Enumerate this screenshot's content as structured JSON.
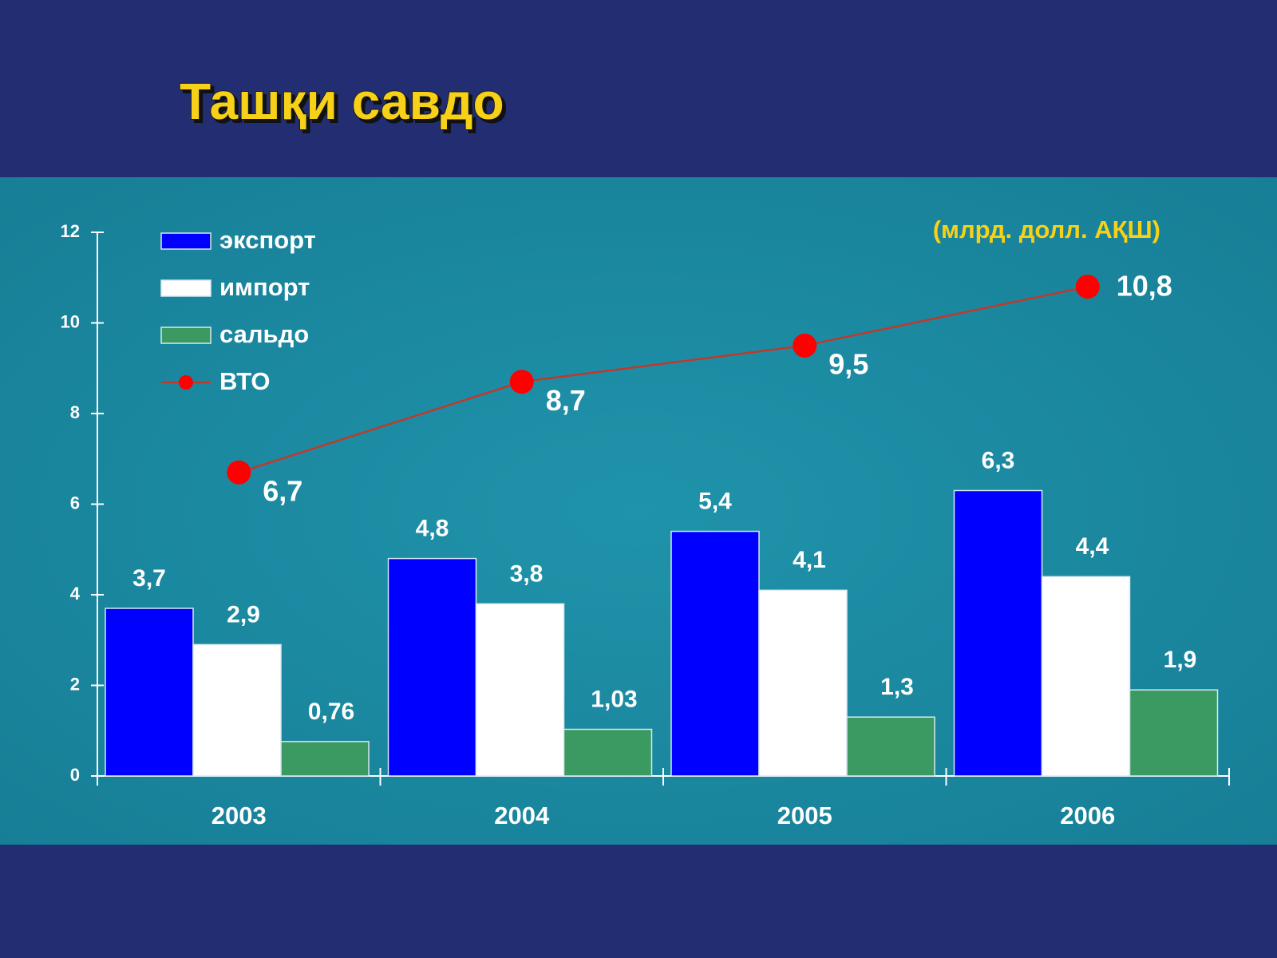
{
  "chart_data": {
    "type": "bar",
    "title": "Ташқи савдо",
    "subtitle": "(млрд. долл. АҚШ)",
    "categories": [
      "2003",
      "2004",
      "2005",
      "2006"
    ],
    "series": [
      {
        "name": "экспорт",
        "color": "#0000ff",
        "values": [
          3.7,
          4.8,
          5.4,
          6.3
        ],
        "value_labels": [
          "3,7",
          "4,8",
          "5,4",
          "6,3"
        ]
      },
      {
        "name": "импорт",
        "color": "#ffffff",
        "values": [
          2.9,
          3.8,
          4.1,
          4.4
        ],
        "value_labels": [
          "2,9",
          "3,8",
          "4,1",
          "4,4"
        ]
      },
      {
        "name": "сальдо",
        "color": "#3a9a62",
        "values": [
          0.76,
          1.03,
          1.3,
          1.9
        ],
        "value_labels": [
          "0,76",
          "1,03",
          "1,3",
          "1,9"
        ]
      },
      {
        "name": "ВТО",
        "type": "line",
        "color": "#ff0000",
        "values": [
          6.7,
          8.7,
          9.5,
          10.8
        ],
        "value_labels": [
          "6,7",
          "8,7",
          "9,5",
          "10,8"
        ]
      }
    ],
    "ylim": [
      0,
      12
    ],
    "yticks": [
      0,
      2,
      4,
      6,
      8,
      10,
      12
    ],
    "legend": "top-left"
  }
}
